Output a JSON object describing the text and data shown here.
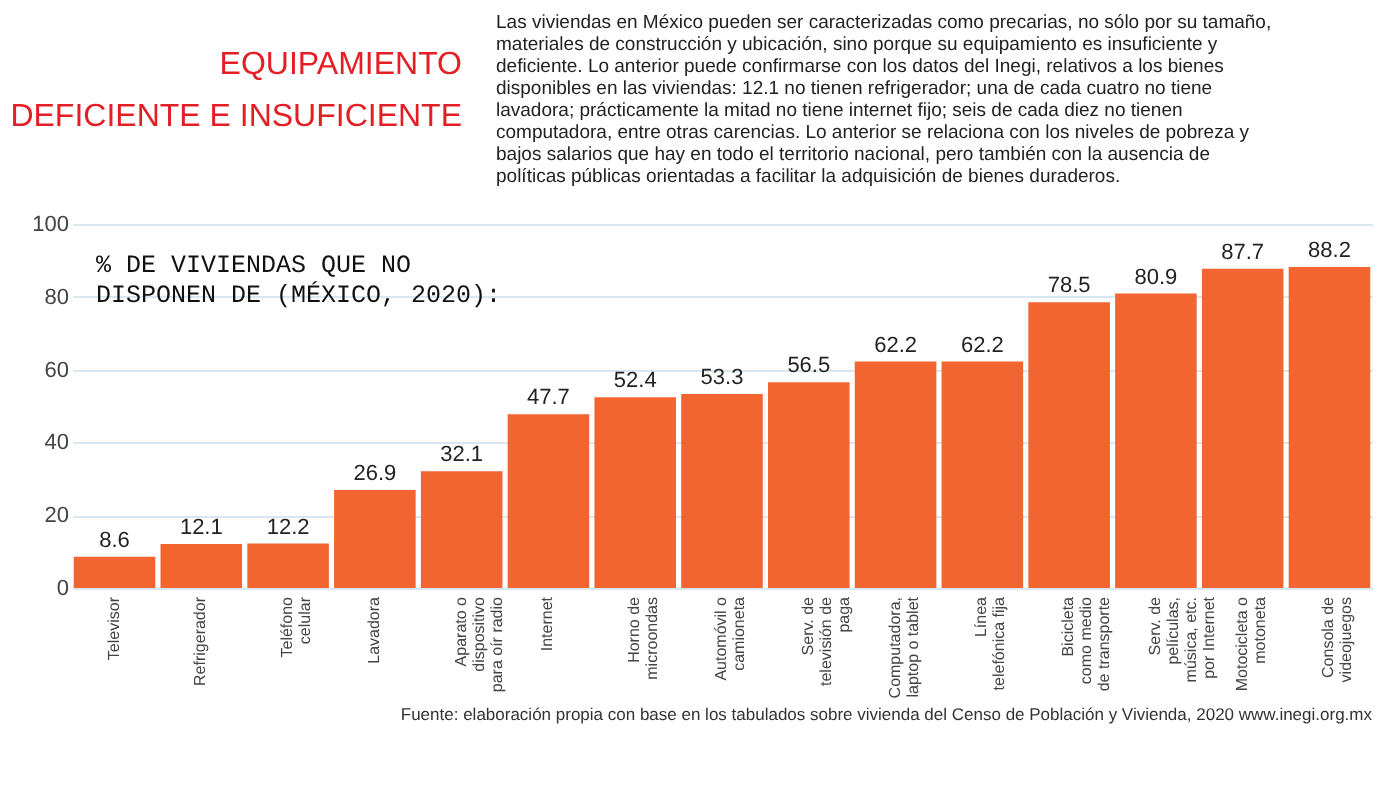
{
  "chart_data": {
    "type": "bar",
    "title": "EQUIPAMIENTO\nDEFICIENTE E INSUFICIENTE",
    "subtitle": "Las viviendas en México pueden ser caracterizadas como precarias, no sólo por su tamaño, materiales de construcción y ubicación, sino porque su equipamiento es insuficiente y deficiente. Lo anterior puede confirmarse con los datos del Inegi, relativos a los bienes disponibles en las viviendas: 12.1 no tienen refrigerador; una de cada cuatro no tiene lavadora; prácticamente la mitad no tiene internet fijo; seis de cada diez no tienen computadora, entre otras carencias. Lo anterior se relaciona con los niveles de pobreza y bajos salarios que hay en todo el territorio nacional, pero también con la ausencia de políticas públicas orientadas a facilitar la adquisición de bienes duraderos.",
    "annotations": [
      "% DE VIVIENDAS QUE NO\nDISPONEN DE (MÉXICO, 2020):",
      "Fuente: elaboración propia con base en los tabulados sobre vivienda del Censo de Población y Vivienda, 2020 www.inegi.org.mx"
    ],
    "categories": [
      "Televisor",
      "Refrigerador",
      "Teléfono\ncelular",
      "Lavadora",
      "Aparato o\ndispositivo\npara oír radio",
      "Internet",
      "Horno de\nmicroondas",
      "Automóvil o\ncamioneta",
      "Serv. de\ntelevisión de\npaga",
      "Computadora,\nlaptop o tablet",
      "Línea\ntelefónica fija",
      "Bicicleta\ncomo medio\nde transporte",
      "Serv. de\npelículas,\nmúsica, etc.\npor Internet",
      "Motocicleta o\nmotoneta",
      "Consola de\nvideojuegos"
    ],
    "values": [
      8.6,
      12.1,
      12.2,
      26.9,
      32.1,
      47.7,
      52.4,
      53.3,
      56.5,
      62.2,
      62.2,
      78.5,
      80.9,
      87.7,
      88.2
    ],
    "color": "#f26430",
    "ylim": [
      0,
      100
    ],
    "yticks": [
      0,
      20,
      40,
      60,
      80,
      100
    ],
    "grid": "y",
    "data_labels": true
  }
}
